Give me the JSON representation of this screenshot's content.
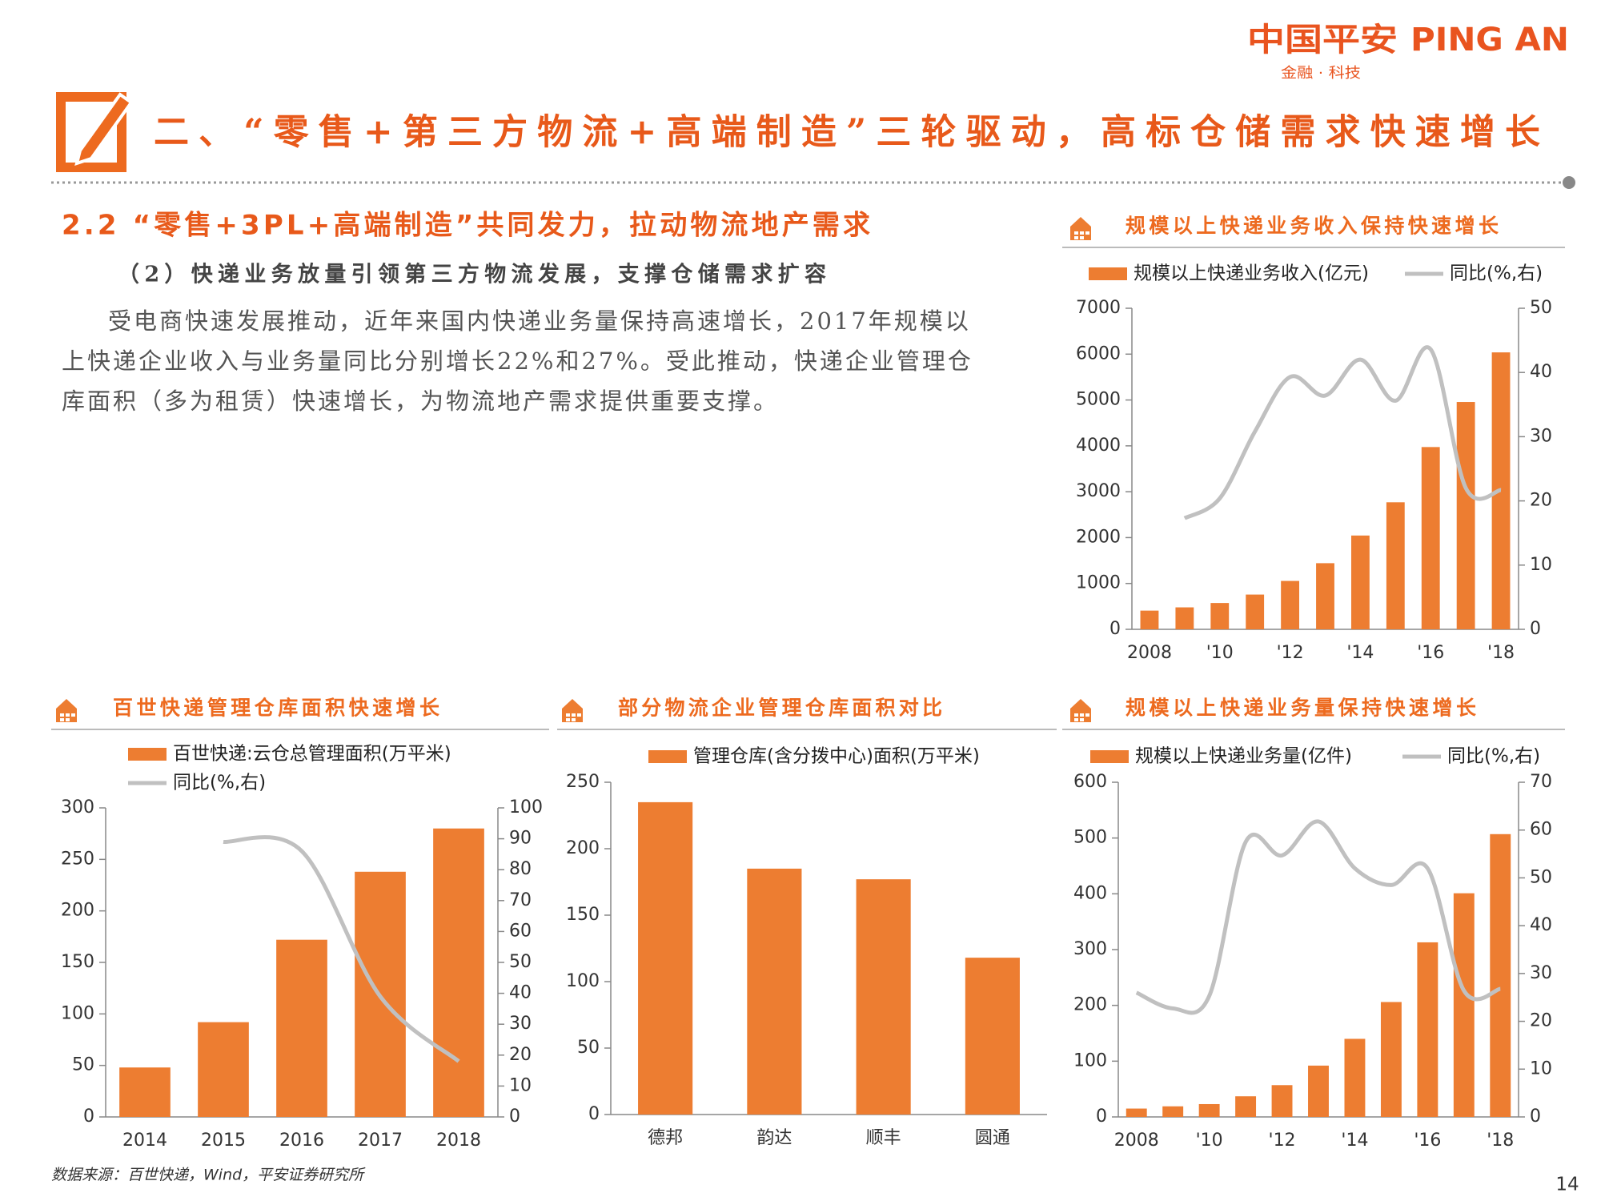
{
  "header": {
    "logo_cn": "中国平安",
    "logo_en": "PING AN",
    "logo_sub": "金融 · 科技",
    "title": "二、“零售+第三方物流+高端制造”三轮驱动，高标仓储需求快速增长"
  },
  "section": {
    "heading": "2.2 “零售+3PL+高端制造”共同发力，拉动物流地产需求",
    "subheading": "（2）快递业务放量引领第三方物流发展，支撑仓储需求扩容",
    "paragraph": "受电商快速发展推动，近年来国内快递业务量保持高速增长，2017年规模以上快递企业收入与业务量同比分别增长22%和27%。受此推动，快递企业管理仓库面积（多为租赁）快速增长，为物流地产需求提供重要支撑。"
  },
  "chart_data": [
    {
      "type": "combo",
      "title": "规模以上快递业务收入保持快速增长",
      "categories": [
        "2008",
        null,
        "'10",
        null,
        "'12",
        null,
        "'14",
        null,
        "'16",
        null,
        "'18"
      ],
      "series": [
        {
          "name": "规模以上快递业务收入(亿元)",
          "mark": "bar",
          "color": "#ED7D31",
          "values": [
            408,
            479,
            574,
            758,
            1055,
            1442,
            2045,
            2770,
            3974,
            4957,
            6038
          ]
        },
        {
          "name": "同比(%,右)",
          "mark": "line",
          "axis": "y2",
          "color": "#C0C0C0",
          "values": [
            null,
            17.3,
            20.4,
            30.8,
            39.3,
            36.4,
            42,
            35.6,
            43.6,
            22,
            21.7
          ]
        }
      ],
      "ylim": [
        0,
        7000
      ],
      "yticks": [
        0,
        1000,
        2000,
        3000,
        4000,
        5000,
        6000,
        7000
      ],
      "y2lim": [
        0,
        50
      ],
      "y2ticks": [
        0,
        10,
        20,
        30,
        40,
        50
      ]
    },
    {
      "type": "combo",
      "title": "百世快递管理仓库面积快速增长",
      "categories": [
        "2014",
        "2015",
        "2016",
        "2017",
        "2018"
      ],
      "series": [
        {
          "name": "百世快递:云仓总管理面积(万平米)",
          "mark": "bar",
          "color": "#ED7D31",
          "values": [
            48,
            92,
            172,
            238,
            280
          ]
        },
        {
          "name": "同比(%,右)",
          "mark": "line",
          "axis": "y2",
          "color": "#C0C0C0",
          "values": [
            null,
            89,
            86,
            39,
            18
          ]
        }
      ],
      "ylim": [
        0,
        300
      ],
      "yticks": [
        0,
        50,
        100,
        150,
        200,
        250,
        300
      ],
      "y2lim": [
        0,
        100
      ],
      "y2ticks": [
        0,
        10,
        20,
        30,
        40,
        50,
        60,
        70,
        80,
        90,
        100
      ]
    },
    {
      "type": "bar",
      "title": "部分物流企业管理仓库面积对比",
      "categories": [
        "德邦",
        "韵达",
        "顺丰",
        "圆通"
      ],
      "series": [
        {
          "name": "管理仓库(含分拨中心)面积(万平米)",
          "mark": "bar",
          "color": "#ED7D31",
          "values": [
            235,
            185,
            177,
            118
          ]
        }
      ],
      "ylim": [
        0,
        250
      ],
      "yticks": [
        0,
        50,
        100,
        150,
        200,
        250
      ]
    },
    {
      "type": "combo",
      "title": "规模以上快递业务量保持快速增长",
      "categories": [
        "2008",
        null,
        "'10",
        null,
        "'12",
        null,
        "'14",
        null,
        "'16",
        null,
        "'18"
      ],
      "series": [
        {
          "name": "规模以上快递业务量(亿件)",
          "mark": "bar",
          "color": "#ED7D31",
          "values": [
            15,
            19,
            23,
            37,
            57,
            92,
            140,
            206,
            313,
            401,
            507
          ]
        },
        {
          "name": "同比(%,右)",
          "mark": "line",
          "axis": "y2",
          "color": "#C0C0C0",
          "values": [
            26,
            22.7,
            25.3,
            57.5,
            54.7,
            61.8,
            52,
            48.5,
            52,
            26.4,
            26.8
          ]
        }
      ],
      "ylim": [
        0,
        600
      ],
      "yticks": [
        0,
        100,
        200,
        300,
        400,
        500,
        600
      ],
      "y2lim": [
        0,
        70
      ],
      "y2ticks": [
        0,
        10,
        20,
        30,
        40,
        50,
        60,
        70
      ]
    }
  ],
  "source": "数据来源：百世快递，Wind，平安证券研究所",
  "page_number": "14"
}
